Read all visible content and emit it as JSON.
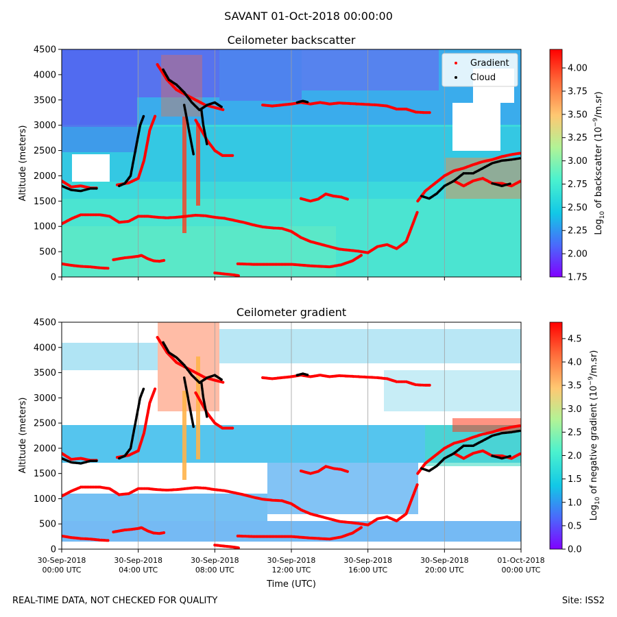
{
  "suptitle": "SAVANT 01-Oct-2018 00:00:00",
  "footer": {
    "left": "REAL-TIME DATA, NOT CHECKED FOR QUALITY",
    "right": "Site: ISS2"
  },
  "colors": {
    "gradient_marker": "#ff0000",
    "cloud_marker": "#000000",
    "colormap": "rainbow"
  },
  "chart_data": [
    {
      "type": "heatmap",
      "title": "Ceilometer backscatter",
      "xlabel": "",
      "ylabel": "Altitude (meters)",
      "ylim": [
        0,
        4500
      ],
      "yticks": [
        0,
        500,
        1000,
        1500,
        2000,
        2500,
        3000,
        3500,
        4000,
        4500
      ],
      "xlim_hours": [
        0,
        24
      ],
      "xtick_hours": [
        0,
        4,
        8,
        12,
        16,
        20,
        24
      ],
      "xtick_labels_shown": false,
      "grid": "vertical-only",
      "colorbar": {
        "label": "Log10 of backscatter (10^-9/m.sr)",
        "range": [
          1.75,
          4.2
        ],
        "ticks": [
          "1.75",
          "2.00",
          "2.25",
          "2.50",
          "2.75",
          "3.00",
          "3.25",
          "3.50",
          "3.75",
          "4.00"
        ]
      },
      "legend": {
        "placement": "top-right",
        "entries": [
          "Gradient",
          "Cloud"
        ]
      }
    },
    {
      "type": "heatmap",
      "title": "Ceilometer gradient",
      "xlabel": "Time (UTC)",
      "ylabel": "Altitude (meters)",
      "ylim": [
        0,
        4500
      ],
      "yticks": [
        0,
        500,
        1000,
        1500,
        2000,
        2500,
        3000,
        3500,
        4000,
        4500
      ],
      "xlim_hours": [
        0,
        24
      ],
      "xtick_hours": [
        0,
        4,
        8,
        12,
        16,
        20,
        24
      ],
      "xtick_labels": [
        [
          "30-Sep-2018",
          "00:00 UTC"
        ],
        [
          "30-Sep-2018",
          "04:00 UTC"
        ],
        [
          "30-Sep-2018",
          "08:00 UTC"
        ],
        [
          "30-Sep-2018",
          "12:00 UTC"
        ],
        [
          "30-Sep-2018",
          "16:00 UTC"
        ],
        [
          "30-Sep-2018",
          "20:00 UTC"
        ],
        [
          "01-Oct-2018",
          "00:00 UTC"
        ]
      ],
      "grid": "vertical-only",
      "colorbar": {
        "label": "Log10 of negative gradient (10^-9/m.sr)",
        "range": [
          0,
          4.85
        ],
        "ticks": [
          "0.0",
          "0.5",
          "1.0",
          "1.5",
          "2.0",
          "2.5",
          "3.0",
          "3.5",
          "4.0",
          "4.5"
        ]
      }
    }
  ],
  "layers": {
    "gradient_tracks": [
      {
        "hours": [
          0,
          0.5,
          1,
          1.5,
          2,
          2.5,
          3,
          3.5,
          4,
          4.5,
          5,
          5.5,
          6,
          6.5,
          7,
          7.5,
          8,
          8.5,
          9,
          9.5,
          10,
          10.5,
          11,
          11.5,
          12,
          12.5,
          13,
          13.5,
          14,
          14.5,
          15,
          15.5,
          16,
          16.5,
          17,
          17.5,
          18,
          18.3,
          18.6
        ],
        "alt": [
          1050,
          1150,
          1230,
          1230,
          1230,
          1200,
          1080,
          1100,
          1200,
          1200,
          1180,
          1170,
          1180,
          1200,
          1220,
          1210,
          1180,
          1160,
          1120,
          1080,
          1030,
          990,
          970,
          960,
          900,
          780,
          700,
          650,
          600,
          550,
          530,
          510,
          480,
          600,
          640,
          560,
          700,
          1000,
          1300
        ]
      },
      {
        "hours": [
          0,
          0.5,
          1,
          1.5,
          2,
          2.5
        ],
        "alt": [
          260,
          230,
          210,
          200,
          180,
          170
        ]
      },
      {
        "hours": [
          2.7,
          3,
          3.3,
          3.6,
          4,
          4.2
        ],
        "alt": [
          340,
          360,
          380,
          390,
          410,
          430
        ]
      },
      {
        "hours": [
          4.2,
          4.5,
          4.8,
          5.1,
          5.4
        ],
        "alt": [
          420,
          360,
          320,
          310,
          330
        ]
      },
      {
        "hours": [
          8,
          8.5,
          9,
          9.3
        ],
        "alt": [
          80,
          60,
          40,
          20
        ]
      },
      {
        "hours": [
          9.2,
          10,
          11,
          12,
          13,
          14,
          14.6,
          15.2,
          15.7
        ],
        "alt": [
          260,
          250,
          250,
          250,
          220,
          200,
          240,
          320,
          440
        ]
      },
      {
        "hours": [
          0,
          0.5,
          1,
          1.5,
          1.9
        ],
        "alt": [
          1900,
          1780,
          1800,
          1760,
          1760
        ]
      },
      {
        "hours": [
          2.9,
          3.5,
          4,
          4.3,
          4.6,
          4.9
        ],
        "alt": [
          1820,
          1860,
          1950,
          2300,
          2900,
          3200
        ]
      },
      {
        "hours": [
          5,
          5.5,
          6,
          6.5,
          7,
          7.5,
          8,
          8.5
        ],
        "alt": [
          4200,
          3900,
          3700,
          3600,
          3500,
          3400,
          3350,
          3300
        ]
      },
      {
        "hours": [
          10.5,
          11,
          11.5,
          12,
          12.5,
          13,
          13.5,
          14,
          14.5,
          15,
          15.5,
          16,
          16.5,
          17,
          17.5,
          18,
          18.5,
          19,
          19.3
        ],
        "alt": [
          3400,
          3380,
          3400,
          3420,
          3450,
          3420,
          3450,
          3420,
          3440,
          3430,
          3420,
          3410,
          3400,
          3380,
          3320,
          3320,
          3260,
          3250,
          3250
        ]
      },
      {
        "hours": [
          12.5,
          13,
          13.4,
          13.8,
          14.2,
          14.6,
          15
        ],
        "alt": [
          1550,
          1500,
          1540,
          1640,
          1600,
          1580,
          1530
        ]
      },
      {
        "hours": [
          18.6,
          19,
          19.5,
          20,
          20.5,
          21,
          21.5,
          22,
          22.5,
          23,
          23.5,
          24
        ],
        "alt": [
          1500,
          1700,
          1850,
          2000,
          2100,
          2150,
          2220,
          2280,
          2320,
          2380,
          2420,
          2450
        ]
      },
      {
        "hours": [
          20.5,
          21,
          21.5,
          22,
          22.5,
          23,
          23.5,
          24
        ],
        "alt": [
          1900,
          1800,
          1900,
          1950,
          1850,
          1850,
          1800,
          1900
        ]
      },
      {
        "hours": [
          7,
          7.3,
          7.6,
          8,
          8.4,
          9
        ],
        "alt": [
          3100,
          2900,
          2700,
          2500,
          2400,
          2400
        ]
      }
    ],
    "cloud_tracks": [
      {
        "hours": [
          0,
          0.5,
          1,
          1.5,
          1.9
        ],
        "alt": [
          1800,
          1720,
          1700,
          1750,
          1750
        ]
      },
      {
        "hours": [
          3,
          3.3,
          3.6,
          3.9,
          4.1,
          4.3
        ],
        "alt": [
          1800,
          1850,
          2000,
          2600,
          3000,
          3200
        ]
      },
      {
        "hours": [
          5.3,
          5.6,
          6,
          6.4,
          6.8,
          7.2,
          7.6,
          8,
          8.4
        ],
        "alt": [
          4100,
          3900,
          3800,
          3650,
          3450,
          3300,
          3400,
          3450,
          3350
        ]
      },
      {
        "hours": [
          6.4,
          6.5,
          6.6,
          6.7,
          6.8,
          6.9
        ],
        "alt": [
          3400,
          3200,
          3000,
          2800,
          2600,
          2400
        ]
      },
      {
        "hours": [
          7.3,
          7.4,
          7.5,
          7.6
        ],
        "alt": [
          3300,
          3000,
          2800,
          2600
        ]
      },
      {
        "hours": [
          12.3,
          12.6,
          12.9
        ],
        "alt": [
          3450,
          3480,
          3450
        ]
      },
      {
        "hours": [
          18.8,
          19.2,
          19.6,
          20,
          20.5,
          21,
          21.5,
          22,
          22.5,
          23,
          23.5,
          24
        ],
        "alt": [
          1600,
          1550,
          1650,
          1800,
          1900,
          2050,
          2050,
          2150,
          2250,
          2300,
          2320,
          2350
        ]
      },
      {
        "hours": [
          22.5,
          23,
          23.5
        ],
        "alt": [
          1850,
          1800,
          1850
        ]
      }
    ]
  }
}
